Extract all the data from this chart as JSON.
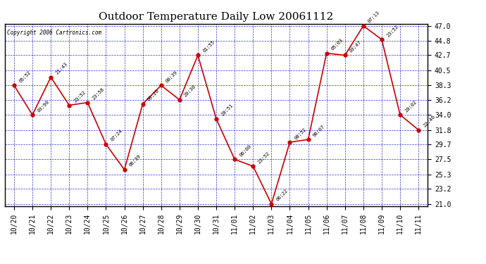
{
  "title": "Outdoor Temperature Daily Low 20061112",
  "copyright": "Copyright 2006 Cartronics.com",
  "x_labels": [
    "10/20",
    "10/21",
    "10/22",
    "10/23",
    "10/24",
    "10/25",
    "10/26",
    "10/27",
    "10/28",
    "10/29",
    "10/30",
    "10/31",
    "11/01",
    "11/02",
    "11/03",
    "11/04",
    "11/05",
    "11/06",
    "11/07",
    "11/08",
    "11/09",
    "11/10",
    "11/11"
  ],
  "y_values": [
    38.3,
    34.0,
    39.5,
    35.4,
    35.8,
    29.7,
    26.0,
    35.6,
    38.3,
    36.2,
    42.7,
    33.4,
    27.5,
    26.5,
    21.0,
    30.0,
    30.4,
    43.0,
    42.7,
    47.0,
    45.0,
    34.0,
    31.8
  ],
  "point_labels": [
    "05:52",
    "03:90",
    "21:43",
    "23:52",
    "23:58",
    "07:24",
    "06:39",
    "09:20",
    "00:39",
    "20:30",
    "01:55",
    "20:51",
    "06:00",
    "23:52",
    "06:22",
    "00:52",
    "96:07",
    "05:03",
    "03:47",
    "07:13",
    "23:52",
    "20:02",
    "22:46"
  ],
  "line_color": "#cc0000",
  "marker_color": "#cc0000",
  "bg_color": "#ffffff",
  "plot_bg": "#ffffff",
  "grid_color": "#0000bb",
  "border_color": "#000000",
  "y_ticks": [
    21.0,
    23.2,
    25.3,
    27.5,
    29.7,
    31.8,
    34.0,
    36.2,
    38.3,
    40.5,
    42.7,
    44.8,
    47.0
  ],
  "y_min": 21.0,
  "y_max": 47.0,
  "title_fontsize": 11,
  "tick_fontsize": 7,
  "annot_fontsize": 5
}
